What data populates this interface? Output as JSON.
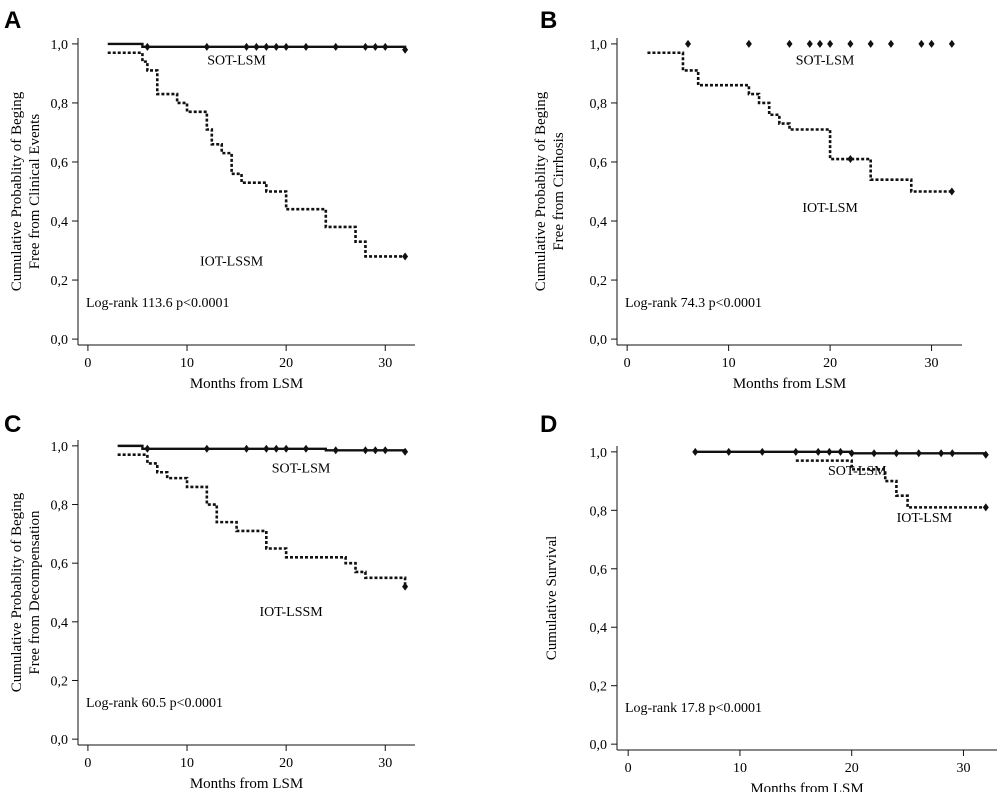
{
  "chart_data": [
    {
      "panel": "A",
      "type": "line",
      "xlabel": "Months from LSM",
      "ylabel": [
        "Cumulative Probablity of Beging",
        "Free from Clinical Events"
      ],
      "xlim": [
        -1,
        33
      ],
      "ylim": [
        -0.02,
        1.02
      ],
      "xticks": [
        0,
        10,
        20,
        30
      ],
      "yticks": [
        "0,0",
        "0,2",
        "0,4",
        "0,6",
        "0,8",
        "1,0"
      ],
      "annotation": "Log-rank 113.6 p<0.0001",
      "series": [
        {
          "name": "SOT-LSM",
          "style": "solid",
          "label_pos": [
            15,
            0.93
          ],
          "steps": [
            [
              2,
              1.0
            ],
            [
              5.5,
              0.99
            ],
            [
              32,
              0.98
            ]
          ],
          "censored": [
            6,
            12,
            16,
            17,
            18,
            19,
            20,
            22,
            25,
            28,
            29,
            30,
            32
          ]
        },
        {
          "name": "IOT-LSSM",
          "style": "dashed",
          "label_pos": [
            14.5,
            0.25
          ],
          "steps": [
            [
              2,
              0.97
            ],
            [
              5.5,
              0.94
            ],
            [
              6,
              0.91
            ],
            [
              7,
              0.83
            ],
            [
              9,
              0.8
            ],
            [
              10,
              0.77
            ],
            [
              12,
              0.71
            ],
            [
              12.5,
              0.66
            ],
            [
              13.5,
              0.63
            ],
            [
              14.5,
              0.56
            ],
            [
              15.5,
              0.53
            ],
            [
              18,
              0.5
            ],
            [
              20,
              0.44
            ],
            [
              24,
              0.38
            ],
            [
              27,
              0.33
            ],
            [
              28,
              0.28
            ],
            [
              32,
              0.28
            ]
          ],
          "censored": [
            32
          ]
        }
      ]
    },
    {
      "panel": "B",
      "type": "line",
      "xlabel": "Months from LSM",
      "ylabel": [
        "Cumulative Probablity of Beging",
        "Free from Cirrhosis"
      ],
      "xlim": [
        -1,
        33
      ],
      "ylim": [
        -0.02,
        1.02
      ],
      "xticks": [
        0,
        10,
        20,
        30
      ],
      "yticks": [
        "0,0",
        "0,2",
        "0,4",
        "0,6",
        "0,8",
        "1,0"
      ],
      "annotation": "Log-rank 74.3 p<0.0001",
      "series": [
        {
          "name": "SOT-LSM",
          "style": "marks-only",
          "label_pos": [
            19.5,
            0.93
          ],
          "steps": [],
          "censored": [
            6,
            12,
            16,
            18,
            19,
            20,
            22,
            24,
            26,
            29,
            30,
            32
          ],
          "censored_y": 1.0
        },
        {
          "name": "IOT-LSM",
          "style": "dashed",
          "label_pos": [
            20,
            0.43
          ],
          "steps": [
            [
              2,
              0.97
            ],
            [
              5.5,
              0.91
            ],
            [
              7,
              0.86
            ],
            [
              12,
              0.83
            ],
            [
              13,
              0.8
            ],
            [
              14,
              0.76
            ],
            [
              15,
              0.73
            ],
            [
              16,
              0.71
            ],
            [
              20,
              0.61
            ],
            [
              24,
              0.54
            ],
            [
              28,
              0.5
            ],
            [
              32,
              0.5
            ]
          ],
          "censored": [
            22,
            32
          ]
        }
      ]
    },
    {
      "panel": "C",
      "type": "line",
      "xlabel": "Months from LSM",
      "ylabel": [
        "Cumulative Probablity of Beging",
        "Free from Decompensation"
      ],
      "xlim": [
        -1,
        33
      ],
      "ylim": [
        -0.02,
        1.02
      ],
      "xticks": [
        0,
        10,
        20,
        30
      ],
      "yticks": [
        "0,0",
        "0,2",
        "0,4",
        "0,6",
        "0,8",
        "1,0"
      ],
      "annotation": "Log-rank 60.5 p<0.0001",
      "series": [
        {
          "name": "SOT-LSM",
          "style": "solid",
          "label_pos": [
            21.5,
            0.91
          ],
          "steps": [
            [
              3,
              1.0
            ],
            [
              5.5,
              0.99
            ],
            [
              24,
              0.985
            ],
            [
              32,
              0.98
            ]
          ],
          "censored": [
            6,
            12,
            16,
            18,
            19,
            20,
            22,
            25,
            28,
            29,
            30,
            32
          ]
        },
        {
          "name": "IOT-LSSM",
          "style": "dashed",
          "label_pos": [
            20.5,
            0.42
          ],
          "steps": [
            [
              3,
              0.97
            ],
            [
              6,
              0.94
            ],
            [
              7,
              0.91
            ],
            [
              8,
              0.89
            ],
            [
              10,
              0.86
            ],
            [
              12,
              0.8
            ],
            [
              13,
              0.74
            ],
            [
              15,
              0.71
            ],
            [
              18,
              0.65
            ],
            [
              20,
              0.62
            ],
            [
              26,
              0.6
            ],
            [
              27,
              0.57
            ],
            [
              28,
              0.55
            ],
            [
              32,
              0.52
            ]
          ],
          "censored": [
            32
          ]
        }
      ]
    },
    {
      "panel": "D",
      "type": "line",
      "xlabel": "Months from LSM",
      "ylabel": [
        "Cumulative Survival"
      ],
      "xlim": [
        -1,
        33
      ],
      "ylim": [
        -0.02,
        1.02
      ],
      "xticks": [
        0,
        10,
        20,
        30
      ],
      "yticks": [
        "0,0",
        "0,2",
        "0,4",
        "0,6",
        "0,8",
        "1,0"
      ],
      "annotation": "Log-rank 17.8 p<0.0001",
      "series": [
        {
          "name": "SOT-LSM",
          "style": "solid",
          "label_pos": [
            20.5,
            0.92
          ],
          "steps": [
            [
              6,
              1.0
            ],
            [
              20,
              0.995
            ],
            [
              32,
              0.99
            ]
          ],
          "censored": [
            6,
            9,
            12,
            15,
            17,
            18,
            19,
            20,
            22,
            24,
            26,
            28,
            29,
            32
          ]
        },
        {
          "name": "IOT-LSM",
          "style": "dashed",
          "label_pos": [
            26.5,
            0.76
          ],
          "steps": [
            [
              15,
              0.97
            ],
            [
              20,
              0.94
            ],
            [
              23,
              0.9
            ],
            [
              24,
              0.85
            ],
            [
              25,
              0.81
            ],
            [
              32,
              0.81
            ]
          ],
          "censored": [
            32
          ]
        }
      ]
    }
  ]
}
